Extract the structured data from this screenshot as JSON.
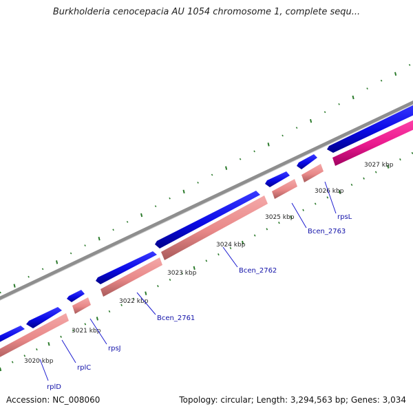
{
  "title": "Burkholderia cenocepacia AU 1054 chromosome 1, complete sequ...",
  "accession": "Accession: NC_008060",
  "summary": "Topology: circular; Length: 3,294,563 bp; Genes: 3,034",
  "colors": {
    "backbone": "#8e8e8e",
    "forward_gene": "#0a0ae6",
    "reverse_gene": "#ea8c8c",
    "highlight_gene": "#ea1a8e",
    "tick": "#2b7a2b",
    "label_line": "#1a1ad0"
  },
  "ticks": [
    {
      "label": "3020 kbp"
    },
    {
      "label": "3021 kbp"
    },
    {
      "label": "3022 kbp"
    },
    {
      "label": "3023 kbp"
    },
    {
      "label": "3024 kbp"
    },
    {
      "label": "3025 kbp"
    },
    {
      "label": "3026 kbp"
    },
    {
      "label": "3027 kbp"
    }
  ],
  "gene_labels": [
    {
      "name": "rplD"
    },
    {
      "name": "rplC"
    },
    {
      "name": "rpsJ"
    },
    {
      "name": "Bcen_2761"
    },
    {
      "name": "Bcen_2762"
    },
    {
      "name": "Bcen_2763"
    },
    {
      "name": "rpsL"
    }
  ]
}
